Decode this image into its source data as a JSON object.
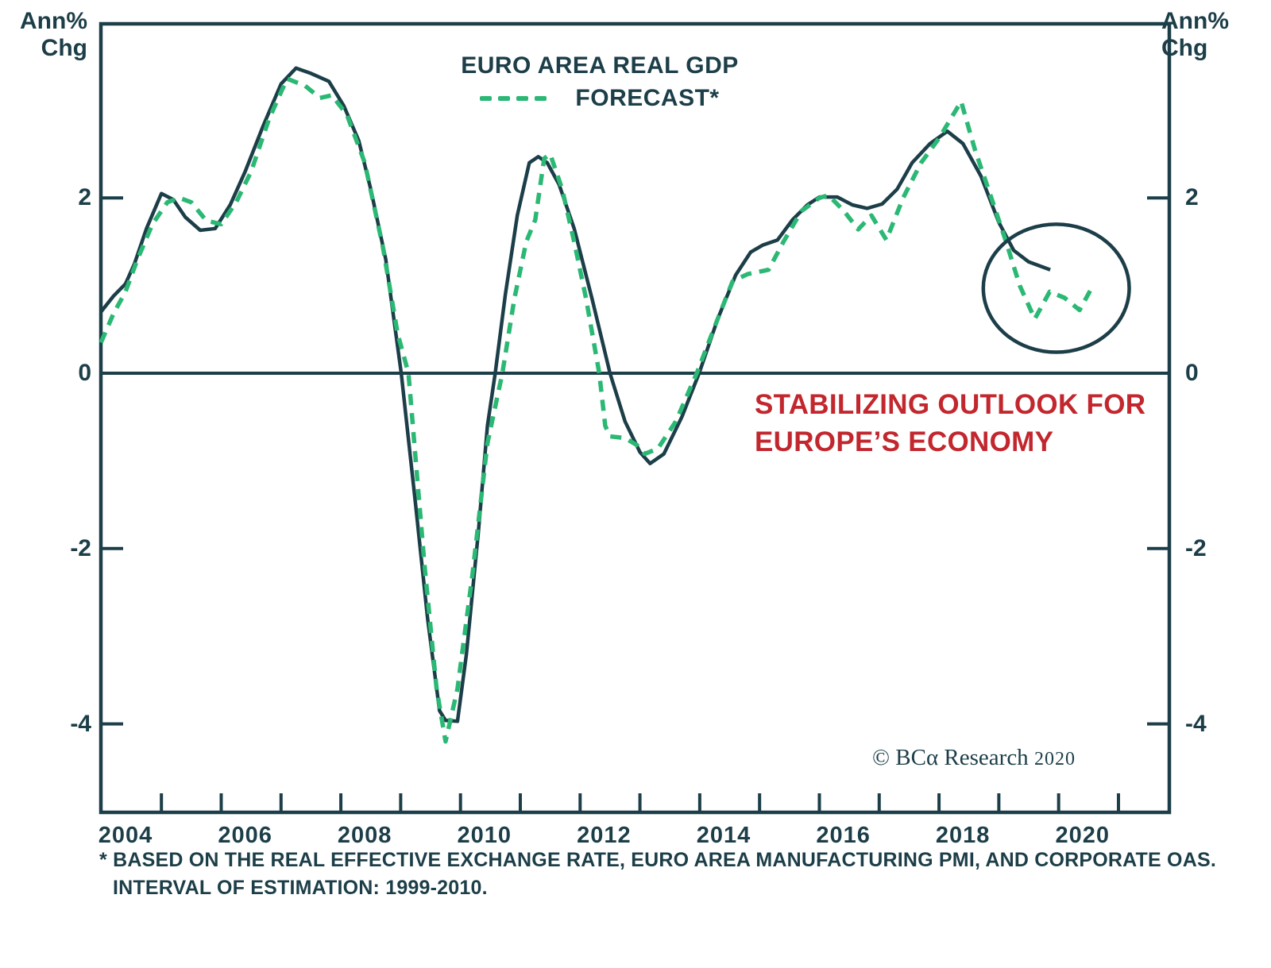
{
  "title_legend": {
    "series1_label": "EURO AREA REAL GDP",
    "series2_label": "FORECAST*"
  },
  "axis_left": {
    "unit_line1": "Ann%",
    "unit_line2": "Chg"
  },
  "axis_right": {
    "unit_line1": "Ann%",
    "unit_line2": "Chg"
  },
  "annotation": {
    "line1": "STABILIZING OUTLOOK FOR",
    "line2": "EUROPE’S ECONOMY"
  },
  "watermark": {
    "text": "© BCα Research",
    "year": "2020"
  },
  "footnote": {
    "line1": "* BASED ON THE REAL EFFECTIVE EXCHANGE RATE, EURO AREA MANUFACTURING PMI, AND CORPORATE OAS.",
    "line2": "INTERVAL OF ESTIMATION: 1999-2010."
  },
  "colors": {
    "dark": "#1C3E48",
    "green": "#2BB874",
    "red": "#C2272E",
    "background": "#FFFFFF"
  },
  "chart_data": {
    "type": "line",
    "title": "EURO AREA REAL GDP",
    "ylabel": "Ann% Chg",
    "ylim": [
      -5,
      4
    ],
    "xlim": [
      2003.59,
      2021.45
    ],
    "grid": false,
    "legend_position": "top-center",
    "y_ticks": [
      2,
      0,
      -2,
      -4
    ],
    "x_tick_labels": [
      2004,
      2006,
      2008,
      2010,
      2012,
      2014,
      2016,
      2018,
      2020
    ],
    "x_minor_ticks_start": 2004.6,
    "x_minor_ticks_count": 17,
    "series": [
      {
        "name": "EURO AREA REAL GDP",
        "style": "solid",
        "points": [
          [
            2003.59,
            0.7
          ],
          [
            2003.8,
            0.88
          ],
          [
            2004.0,
            1.02
          ],
          [
            2004.15,
            1.25
          ],
          [
            2004.35,
            1.65
          ],
          [
            2004.6,
            2.05
          ],
          [
            2004.8,
            1.98
          ],
          [
            2005.0,
            1.78
          ],
          [
            2005.25,
            1.63
          ],
          [
            2005.5,
            1.65
          ],
          [
            2005.75,
            1.92
          ],
          [
            2006.0,
            2.3
          ],
          [
            2006.3,
            2.82
          ],
          [
            2006.6,
            3.3
          ],
          [
            2006.85,
            3.48
          ],
          [
            2007.1,
            3.42
          ],
          [
            2007.4,
            3.33
          ],
          [
            2007.65,
            3.05
          ],
          [
            2007.9,
            2.65
          ],
          [
            2008.1,
            2.1
          ],
          [
            2008.35,
            1.3
          ],
          [
            2008.61,
            0.0
          ],
          [
            2008.85,
            -1.5
          ],
          [
            2009.05,
            -2.8
          ],
          [
            2009.25,
            -3.85
          ],
          [
            2009.35,
            -3.96
          ],
          [
            2009.55,
            -3.97
          ],
          [
            2009.7,
            -3.2
          ],
          [
            2009.9,
            -1.8
          ],
          [
            2010.05,
            -0.6
          ],
          [
            2010.18,
            0.0
          ],
          [
            2010.35,
            0.9
          ],
          [
            2010.55,
            1.8
          ],
          [
            2010.75,
            2.4
          ],
          [
            2010.9,
            2.47
          ],
          [
            2011.05,
            2.4
          ],
          [
            2011.25,
            2.15
          ],
          [
            2011.5,
            1.65
          ],
          [
            2011.8,
            0.85
          ],
          [
            2012.1,
            0.0
          ],
          [
            2012.35,
            -0.55
          ],
          [
            2012.6,
            -0.9
          ],
          [
            2012.77,
            -1.03
          ],
          [
            2013.0,
            -0.92
          ],
          [
            2013.3,
            -0.5
          ],
          [
            2013.59,
            0.0
          ],
          [
            2013.9,
            0.62
          ],
          [
            2014.2,
            1.12
          ],
          [
            2014.45,
            1.38
          ],
          [
            2014.65,
            1.46
          ],
          [
            2014.9,
            1.52
          ],
          [
            2015.15,
            1.75
          ],
          [
            2015.4,
            1.92
          ],
          [
            2015.6,
            2.01
          ],
          [
            2015.9,
            2.01
          ],
          [
            2016.15,
            1.92
          ],
          [
            2016.4,
            1.88
          ],
          [
            2016.65,
            1.93
          ],
          [
            2016.9,
            2.1
          ],
          [
            2017.15,
            2.4
          ],
          [
            2017.45,
            2.62
          ],
          [
            2017.74,
            2.76
          ],
          [
            2018.0,
            2.62
          ],
          [
            2018.3,
            2.25
          ],
          [
            2018.6,
            1.72
          ],
          [
            2018.85,
            1.4
          ],
          [
            2019.1,
            1.27
          ],
          [
            2019.46,
            1.18
          ]
        ]
      },
      {
        "name": "FORECAST*",
        "style": "dashed",
        "points": [
          [
            2003.59,
            0.35
          ],
          [
            2003.8,
            0.68
          ],
          [
            2004.0,
            0.93
          ],
          [
            2004.2,
            1.3
          ],
          [
            2004.45,
            1.7
          ],
          [
            2004.7,
            1.95
          ],
          [
            2004.9,
            2.0
          ],
          [
            2005.1,
            1.95
          ],
          [
            2005.35,
            1.74
          ],
          [
            2005.6,
            1.7
          ],
          [
            2005.85,
            1.95
          ],
          [
            2006.1,
            2.3
          ],
          [
            2006.4,
            2.9
          ],
          [
            2006.7,
            3.36
          ],
          [
            2007.0,
            3.28
          ],
          [
            2007.25,
            3.14
          ],
          [
            2007.45,
            3.17
          ],
          [
            2007.7,
            2.95
          ],
          [
            2008.0,
            2.4
          ],
          [
            2008.3,
            1.45
          ],
          [
            2008.55,
            0.45
          ],
          [
            2008.73,
            0.0
          ],
          [
            2009.0,
            -2.2
          ],
          [
            2009.2,
            -3.6
          ],
          [
            2009.35,
            -4.2
          ],
          [
            2009.55,
            -3.6
          ],
          [
            2009.8,
            -2.3
          ],
          [
            2010.05,
            -0.8
          ],
          [
            2010.3,
            0.0
          ],
          [
            2010.5,
            0.85
          ],
          [
            2010.7,
            1.5
          ],
          [
            2010.85,
            1.75
          ],
          [
            2011.0,
            2.45
          ],
          [
            2011.1,
            2.5
          ],
          [
            2011.3,
            2.1
          ],
          [
            2011.5,
            1.5
          ],
          [
            2011.7,
            0.85
          ],
          [
            2011.92,
            0.0
          ],
          [
            2012.02,
            -0.6
          ],
          [
            2012.1,
            -0.72
          ],
          [
            2012.35,
            -0.74
          ],
          [
            2012.55,
            -0.82
          ],
          [
            2012.68,
            -0.92
          ],
          [
            2012.9,
            -0.86
          ],
          [
            2013.2,
            -0.55
          ],
          [
            2013.55,
            0.0
          ],
          [
            2013.9,
            0.62
          ],
          [
            2014.15,
            1.05
          ],
          [
            2014.4,
            1.13
          ],
          [
            2014.75,
            1.18
          ],
          [
            2015.0,
            1.5
          ],
          [
            2015.3,
            1.85
          ],
          [
            2015.6,
            2.0
          ],
          [
            2015.75,
            2.03
          ],
          [
            2016.0,
            1.86
          ],
          [
            2016.25,
            1.64
          ],
          [
            2016.47,
            1.8
          ],
          [
            2016.72,
            1.52
          ],
          [
            2017.0,
            2.0
          ],
          [
            2017.3,
            2.4
          ],
          [
            2017.6,
            2.68
          ],
          [
            2017.97,
            3.1
          ],
          [
            2018.2,
            2.55
          ],
          [
            2018.45,
            2.05
          ],
          [
            2018.73,
            1.48
          ],
          [
            2018.95,
            1.0
          ],
          [
            2019.2,
            0.62
          ],
          [
            2019.45,
            0.93
          ],
          [
            2019.7,
            0.86
          ],
          [
            2019.95,
            0.72
          ],
          [
            2020.15,
            0.97
          ]
        ]
      }
    ],
    "highlight_ellipse": {
      "center_x": 2019.56,
      "center_y": 0.97,
      "radius_x_years": 1.22,
      "radius_y_units": 0.73
    }
  }
}
